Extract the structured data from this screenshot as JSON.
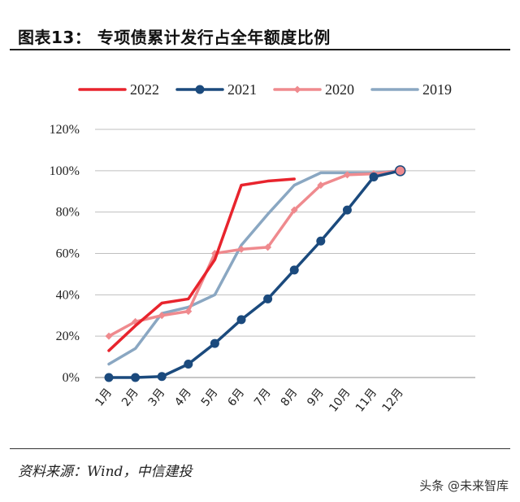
{
  "header": {
    "title": "图表13：   专项债累计发行占全年额度比例"
  },
  "footer": {
    "source": "资料来源：Wind，中信建投",
    "watermark": "头条 @未来智库"
  },
  "chart_data": {
    "type": "line",
    "categories": [
      "1月",
      "2月",
      "3月",
      "4月",
      "5月",
      "6月",
      "7月",
      "8月",
      "9月",
      "10月",
      "11月",
      "12月"
    ],
    "ylim": [
      0,
      120
    ],
    "yticks": [
      0,
      20,
      40,
      60,
      80,
      100,
      120
    ],
    "ytick_labels": [
      "0%",
      "20%",
      "40%",
      "60%",
      "80%",
      "100%",
      "120%"
    ],
    "grid": "horizontal",
    "legend_position": "top",
    "series": [
      {
        "name": "2022",
        "color": "#e8242d",
        "marker": "none",
        "values": [
          13,
          25,
          36,
          38,
          57,
          93,
          95,
          96,
          null,
          null,
          null,
          null
        ]
      },
      {
        "name": "2021",
        "color": "#1b4a7d",
        "marker": "circle",
        "values": [
          0,
          0,
          0.5,
          6.5,
          16.5,
          28,
          38,
          52,
          66,
          81,
          97,
          100
        ]
      },
      {
        "name": "2020",
        "color": "#ef8a8e",
        "marker": "diamond",
        "values": [
          20,
          27,
          30,
          32,
          60,
          62,
          63,
          81,
          93,
          98,
          98.5,
          100
        ]
      },
      {
        "name": "2019",
        "color": "#8aa7c2",
        "marker": "none",
        "values": [
          6.5,
          14,
          31,
          34,
          40,
          64,
          79,
          93,
          99,
          99,
          99,
          100
        ]
      }
    ]
  }
}
